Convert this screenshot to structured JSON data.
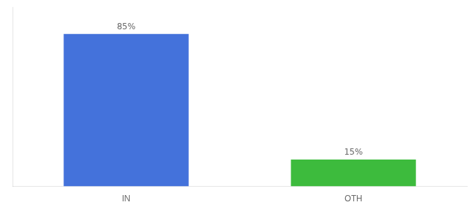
{
  "chart_data": {
    "type": "bar",
    "categories": [
      "IN",
      "OTH"
    ],
    "values": [
      85,
      15
    ],
    "value_labels": [
      "85%",
      "15%"
    ],
    "data_labels": true,
    "colors": [
      "#4472db",
      "#3dbb3d"
    ],
    "ylim": [
      0,
      100
    ],
    "yticks": [],
    "tick_labels": "x",
    "grid": false
  }
}
